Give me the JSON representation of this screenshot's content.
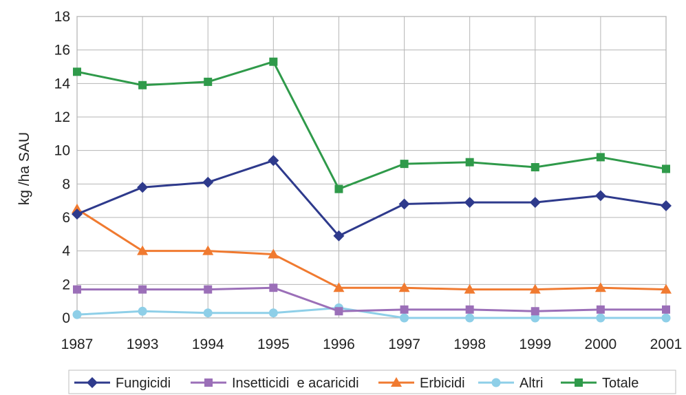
{
  "chart_data": {
    "type": "line",
    "title": "",
    "xlabel": "",
    "ylabel": "kg /ha SAU",
    "categories": [
      "1987",
      "1993",
      "1994",
      "1995",
      "1996",
      "1997",
      "1998",
      "1999",
      "2000",
      "2001"
    ],
    "ylim": [
      0,
      18
    ],
    "yticks": [
      0,
      2,
      4,
      6,
      8,
      10,
      12,
      14,
      16,
      18
    ],
    "grid": true,
    "legend_position": "bottom",
    "series": [
      {
        "name": "Fungicidi",
        "marker": "diamond",
        "color": "#2e3a8c",
        "values": [
          6.2,
          7.8,
          8.1,
          9.4,
          4.9,
          6.8,
          6.9,
          6.9,
          7.3,
          6.7
        ]
      },
      {
        "name": "Insetticidi  e acaricidi",
        "marker": "square",
        "color": "#9b6fb8",
        "values": [
          1.7,
          1.7,
          1.7,
          1.8,
          0.4,
          0.5,
          0.5,
          0.4,
          0.5,
          0.5
        ]
      },
      {
        "name": "Erbicidi",
        "marker": "triangle",
        "color": "#f07a30",
        "values": [
          6.5,
          4.0,
          4.0,
          3.8,
          1.8,
          1.8,
          1.7,
          1.7,
          1.8,
          1.7
        ]
      },
      {
        "name": "Altri",
        "marker": "circle",
        "color": "#8ecfe8",
        "values": [
          0.2,
          0.4,
          0.3,
          0.3,
          0.6,
          0.0,
          0.0,
          0.0,
          0.0,
          0.0
        ]
      },
      {
        "name": "Totale",
        "marker": "square",
        "color": "#2f9a4a",
        "values": [
          14.7,
          13.9,
          14.1,
          15.3,
          7.7,
          9.2,
          9.3,
          9.0,
          9.6,
          8.9
        ]
      }
    ]
  }
}
